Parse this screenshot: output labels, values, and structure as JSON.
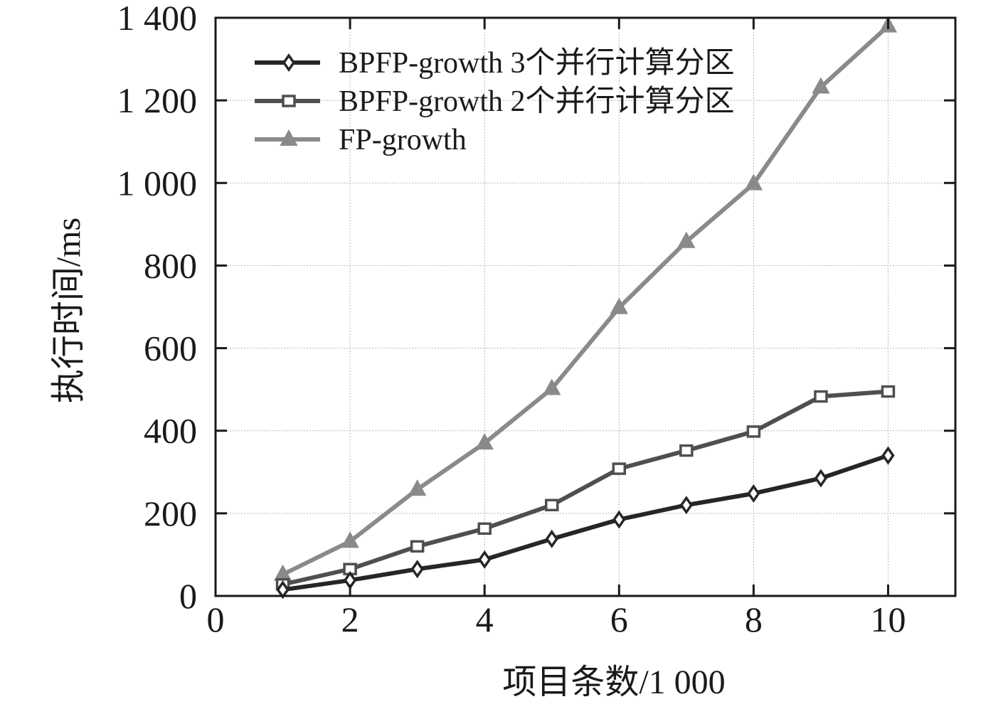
{
  "chart_data": {
    "type": "line",
    "xlabel": "项目条数/1 000",
    "ylabel": "执行时间/ms",
    "xlim": [
      0,
      11
    ],
    "ylim": [
      0,
      1400
    ],
    "xticks": [
      0,
      2,
      4,
      6,
      8,
      10
    ],
    "xtick_labels": [
      "0",
      "2",
      "4",
      "6",
      "8",
      "10"
    ],
    "yticks": [
      0,
      200,
      400,
      600,
      800,
      1000,
      1200,
      1400
    ],
    "ytick_labels": [
      "0",
      "200",
      "400",
      "600",
      "800",
      "1 000",
      "1 200",
      "1 400"
    ],
    "grid": true,
    "legend_position": "top-left",
    "x": [
      1,
      2,
      3,
      4,
      5,
      6,
      7,
      8,
      9,
      10
    ],
    "series": [
      {
        "name": "BPFP-growth 3个并行计算分区",
        "marker": "diamond",
        "color": "#262626",
        "values": [
          15,
          38,
          65,
          88,
          138,
          185,
          220,
          248,
          285,
          340
        ]
      },
      {
        "name": "BPFP-growth 2个并行计算分区",
        "marker": "square",
        "color": "#4f4f4f",
        "values": [
          28,
          65,
          120,
          163,
          220,
          308,
          352,
          398,
          483,
          495
        ]
      },
      {
        "name": "FP-growth",
        "marker": "triangle",
        "color": "#8a8a8a",
        "values": [
          52,
          132,
          258,
          370,
          502,
          698,
          858,
          998,
          1232,
          1380
        ]
      }
    ]
  }
}
